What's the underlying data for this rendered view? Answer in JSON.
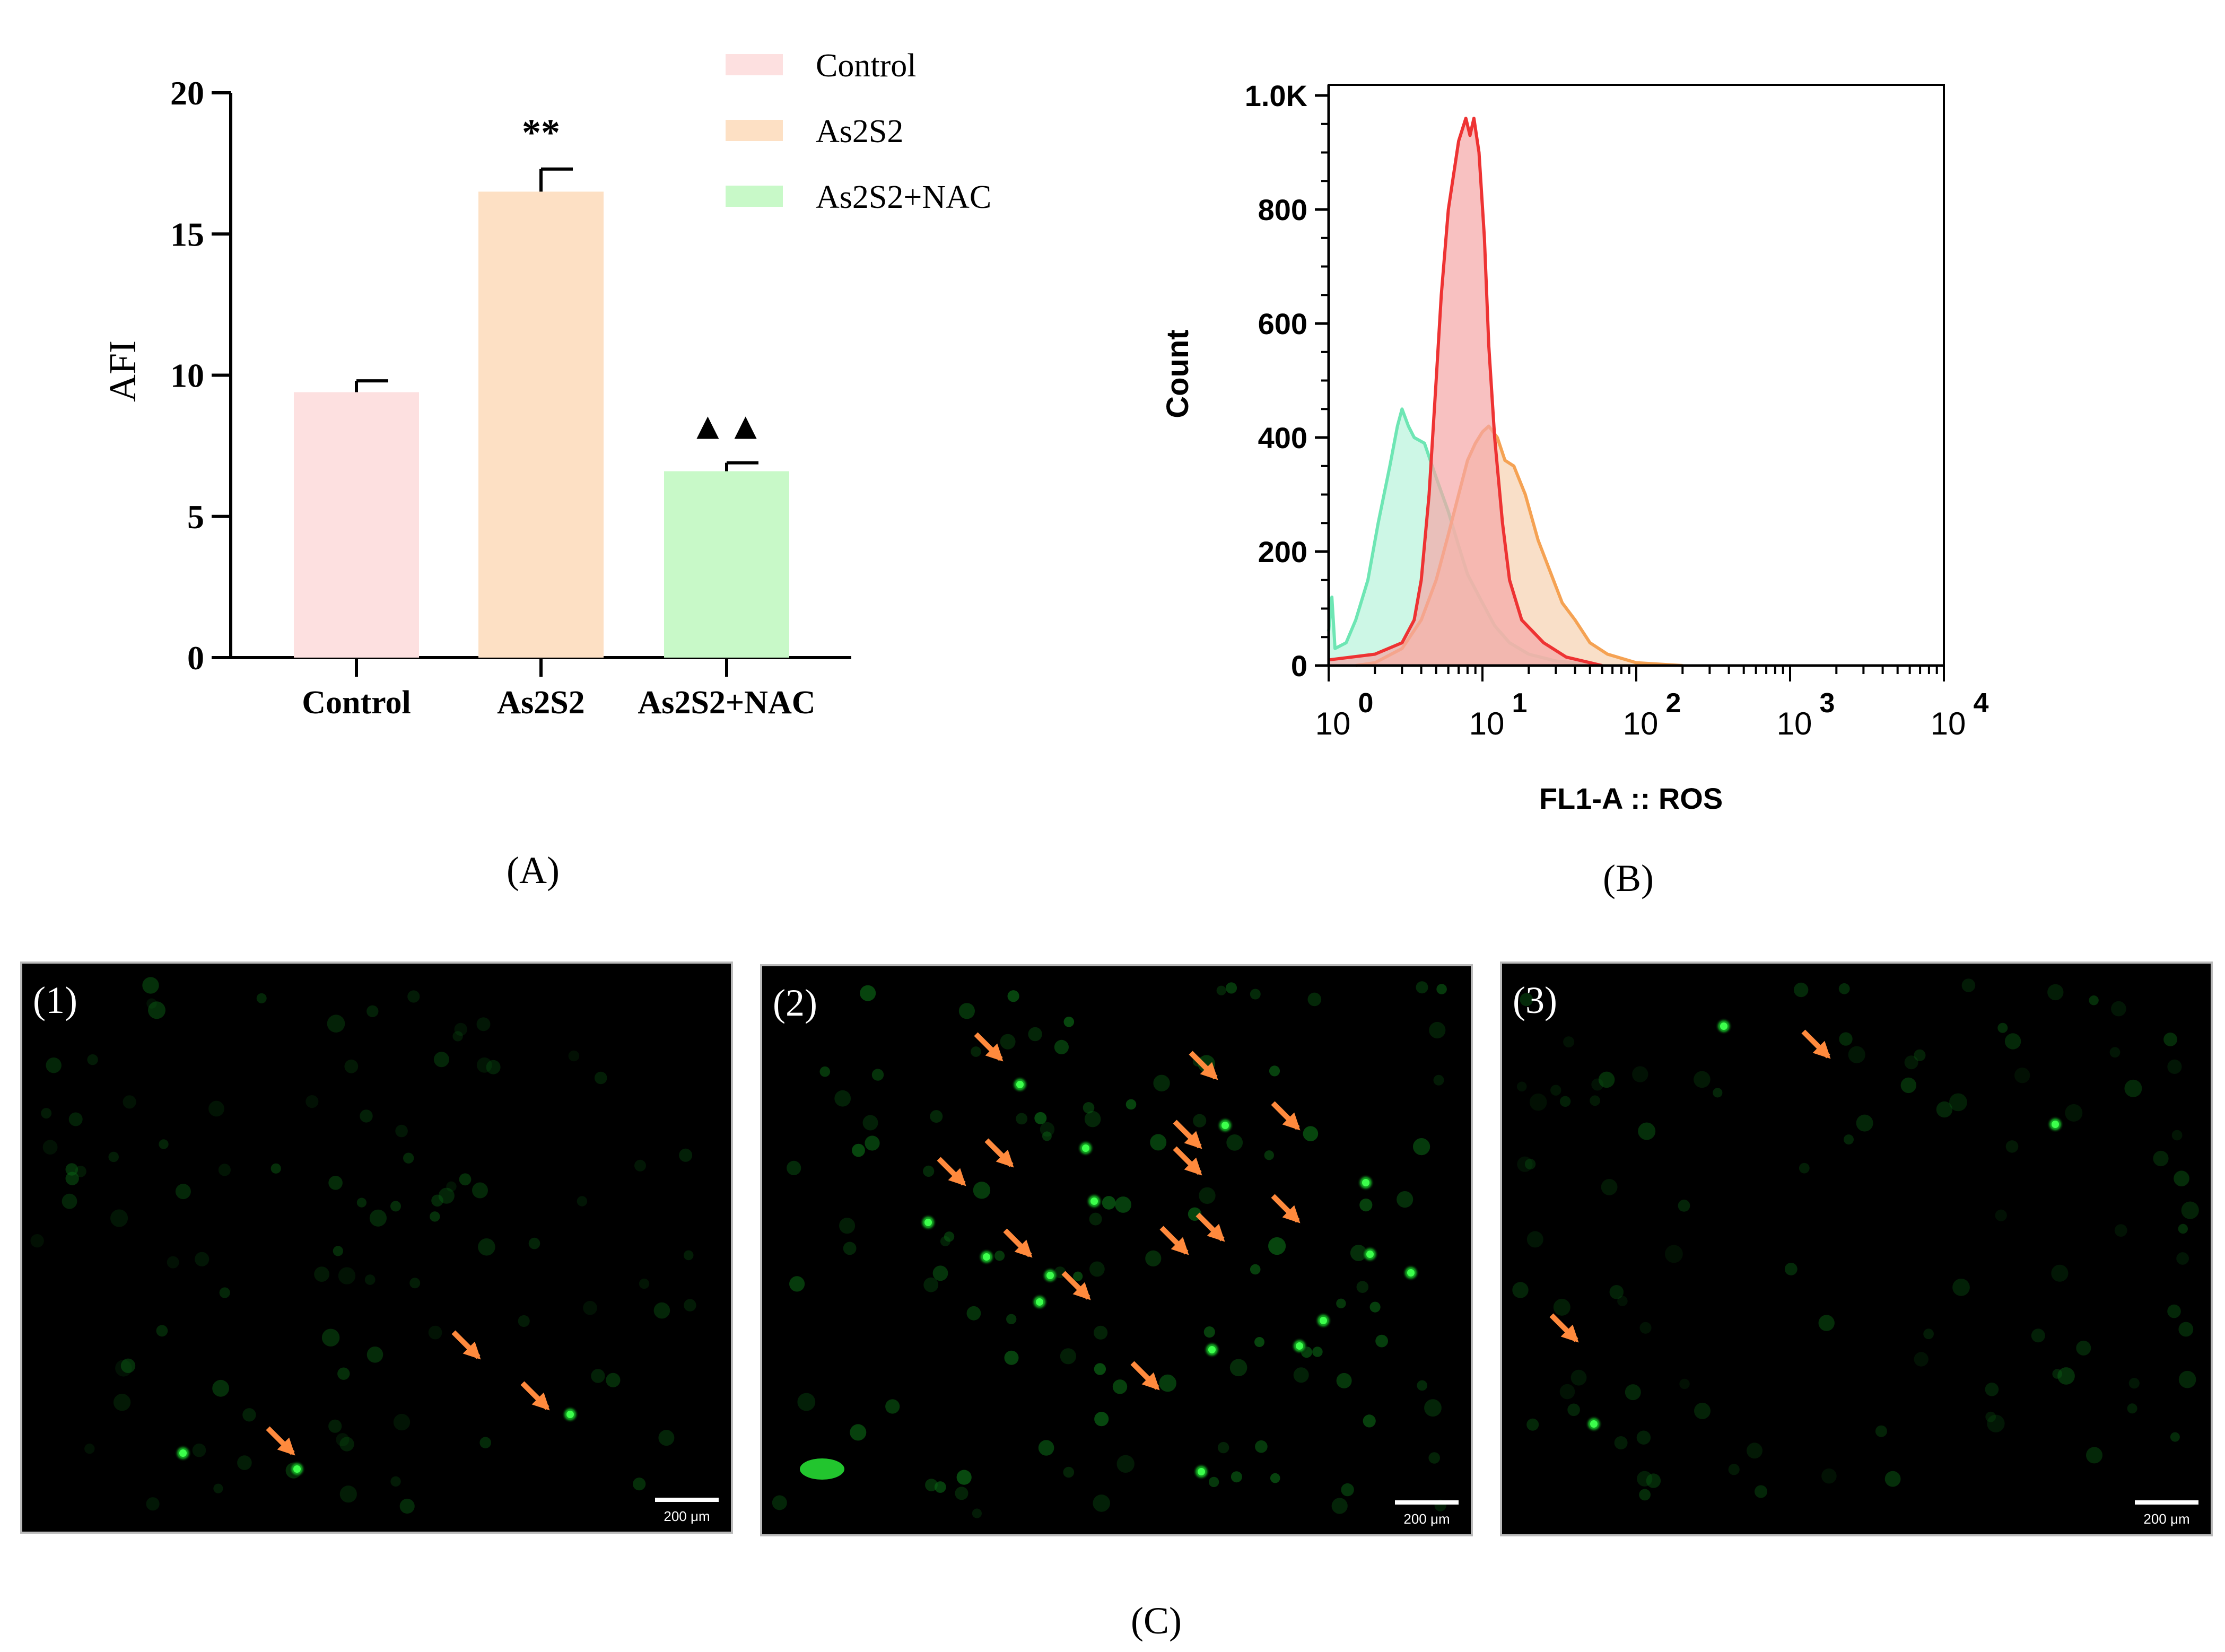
{
  "panels": {
    "a_label": "(A)",
    "b_label": "(B)",
    "c_label": "(C)"
  },
  "chart_data": [
    {
      "type": "bar",
      "panel": "A",
      "categories": [
        "Control",
        "As2S2",
        "As2S2+NAC"
      ],
      "values": [
        9.4,
        16.5,
        6.6
      ],
      "errors": [
        0.4,
        0.8,
        0.3
      ],
      "significance": [
        "",
        "**",
        "▲▲"
      ],
      "colors": [
        "#fde0e0",
        "#fde0c4",
        "#c8f9c8"
      ],
      "ylabel": "AFI",
      "xlabel": "",
      "ylim": [
        0,
        20
      ],
      "yticks": [
        0,
        5,
        10,
        15,
        20
      ],
      "legend": [
        "Control",
        "As2S2",
        "As2S2+NAC"
      ],
      "legend_position": "top-right"
    },
    {
      "type": "area",
      "panel": "B",
      "ylabel": "Count",
      "xlabel": "FL1-A :: ROS",
      "xscale": "log",
      "xlim": [
        1,
        10000
      ],
      "ylim": [
        0,
        1000
      ],
      "yticks": [
        {
          "v": 0,
          "t": "0"
        },
        {
          "v": 200,
          "t": "200"
        },
        {
          "v": 400,
          "t": "400"
        },
        {
          "v": 600,
          "t": "600"
        },
        {
          "v": 800,
          "t": "800"
        },
        {
          "v": 1000,
          "t": "1.0K"
        }
      ],
      "xticks": [
        {
          "v": 1,
          "base": "10",
          "exp": "0"
        },
        {
          "v": 10,
          "base": "10",
          "exp": "1"
        },
        {
          "v": 100,
          "base": "10",
          "exp": "2"
        },
        {
          "v": 1000,
          "base": "10",
          "exp": "3"
        },
        {
          "v": 10000,
          "base": "10",
          "exp": "4"
        }
      ],
      "series": [
        {
          "name": "As2S2+NAC",
          "stroke": "#6ee6b4",
          "fill": "#b8f3dc",
          "points": [
            [
              1.0,
              60
            ],
            [
              1.05,
              120
            ],
            [
              1.1,
              30
            ],
            [
              1.3,
              40
            ],
            [
              1.5,
              80
            ],
            [
              1.8,
              150
            ],
            [
              2.1,
              250
            ],
            [
              2.5,
              350
            ],
            [
              2.8,
              420
            ],
            [
              3.0,
              450
            ],
            [
              3.3,
              420
            ],
            [
              3.6,
              400
            ],
            [
              4.2,
              390
            ],
            [
              5.0,
              330
            ],
            [
              6.0,
              270
            ],
            [
              7.0,
              210
            ],
            [
              8.0,
              160
            ],
            [
              10.0,
              110
            ],
            [
              12.0,
              70
            ],
            [
              15.0,
              40
            ],
            [
              20.0,
              20
            ],
            [
              30.0,
              8
            ],
            [
              60.0,
              0
            ]
          ]
        },
        {
          "name": "As2S2",
          "stroke": "#f5a253",
          "fill": "#f7d2b0",
          "points": [
            [
              1.5,
              0
            ],
            [
              2.0,
              5
            ],
            [
              3.0,
              30
            ],
            [
              4.0,
              80
            ],
            [
              5.0,
              150
            ],
            [
              6.0,
              230
            ],
            [
              7.0,
              300
            ],
            [
              8.0,
              360
            ],
            [
              9.0,
              390
            ],
            [
              10.0,
              410
            ],
            [
              11.0,
              420
            ],
            [
              12.5,
              400
            ],
            [
              14.0,
              360
            ],
            [
              16.0,
              350
            ],
            [
              19.0,
              300
            ],
            [
              23.0,
              220
            ],
            [
              28.0,
              160
            ],
            [
              33.0,
              110
            ],
            [
              40.0,
              80
            ],
            [
              50.0,
              40
            ],
            [
              65.0,
              20
            ],
            [
              100.0,
              5
            ],
            [
              200.0,
              0
            ]
          ]
        },
        {
          "name": "Control",
          "stroke": "#ee3333",
          "fill": "#f5a7a7",
          "points": [
            [
              1.0,
              10
            ],
            [
              2.0,
              20
            ],
            [
              3.0,
              40
            ],
            [
              3.6,
              80
            ],
            [
              4.0,
              150
            ],
            [
              4.5,
              300
            ],
            [
              5.0,
              500
            ],
            [
              5.4,
              650
            ],
            [
              6.0,
              800
            ],
            [
              7.0,
              920
            ],
            [
              7.8,
              960
            ],
            [
              8.3,
              930
            ],
            [
              8.8,
              960
            ],
            [
              9.5,
              900
            ],
            [
              10.3,
              750
            ],
            [
              11.0,
              560
            ],
            [
              12.0,
              400
            ],
            [
              13.5,
              250
            ],
            [
              15.0,
              150
            ],
            [
              18.0,
              80
            ],
            [
              25.0,
              40
            ],
            [
              35.0,
              15
            ],
            [
              50.0,
              5
            ],
            [
              60.0,
              0
            ]
          ]
        }
      ]
    }
  ],
  "micrographs": [
    {
      "label": "(1)",
      "scale_bar": "200 μm"
    },
    {
      "label": "(2)",
      "scale_bar": "200 μm"
    },
    {
      "label": "(3)",
      "scale_bar": "200 μm"
    }
  ]
}
